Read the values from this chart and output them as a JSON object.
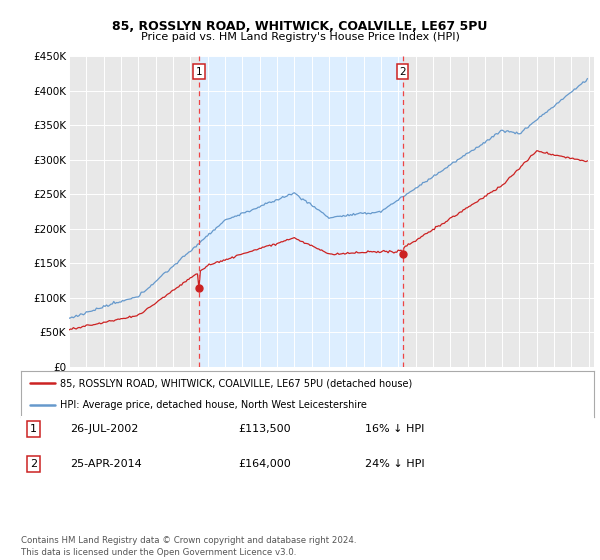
{
  "title1": "85, ROSSLYN ROAD, WHITWICK, COALVILLE, LE67 5PU",
  "title2": "Price paid vs. HM Land Registry's House Price Index (HPI)",
  "ylim": [
    0,
    450000
  ],
  "yticks": [
    0,
    50000,
    100000,
    150000,
    200000,
    250000,
    300000,
    350000,
    400000,
    450000
  ],
  "ytick_labels": [
    "£0",
    "£50K",
    "£100K",
    "£150K",
    "£200K",
    "£250K",
    "£300K",
    "£350K",
    "£400K",
    "£450K"
  ],
  "hpi_color": "#6699cc",
  "price_color": "#cc2222",
  "vline_color": "#ee4444",
  "shade_color": "#ddeeff",
  "legend_line1": "85, ROSSLYN ROAD, WHITWICK, COALVILLE, LE67 5PU (detached house)",
  "legend_line2": "HPI: Average price, detached house, North West Leicestershire",
  "table_row1": [
    "1",
    "26-JUL-2002",
    "£113,500",
    "16% ↓ HPI"
  ],
  "table_row2": [
    "2",
    "25-APR-2014",
    "£164,000",
    "24% ↓ HPI"
  ],
  "footnote": "Contains HM Land Registry data © Crown copyright and database right 2024.\nThis data is licensed under the Open Government Licence v3.0.",
  "background_color": "#ffffff",
  "plot_bg_color": "#e8e8e8"
}
